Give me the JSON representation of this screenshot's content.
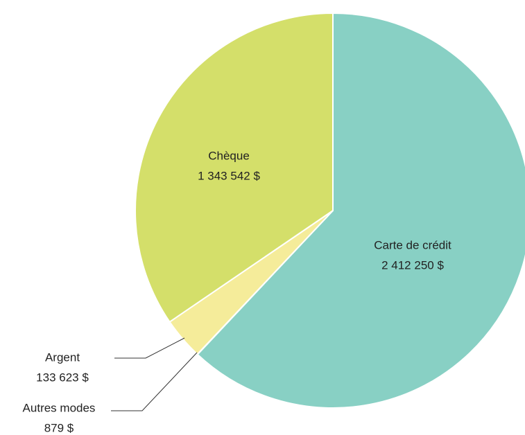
{
  "chart_data": {
    "type": "pie",
    "categories": [
      "Carte de crédit",
      "Autres modes",
      "Argent",
      "Chèque"
    ],
    "values": [
      2412250,
      879,
      133623,
      1343542
    ],
    "value_labels": [
      "2 412 250 $",
      "879 $",
      "133 623 $",
      "1 343 542 $"
    ],
    "colors": [
      "#88d0c4",
      "#6fb8a8",
      "#f5ec9a",
      "#d4df6a"
    ]
  }
}
